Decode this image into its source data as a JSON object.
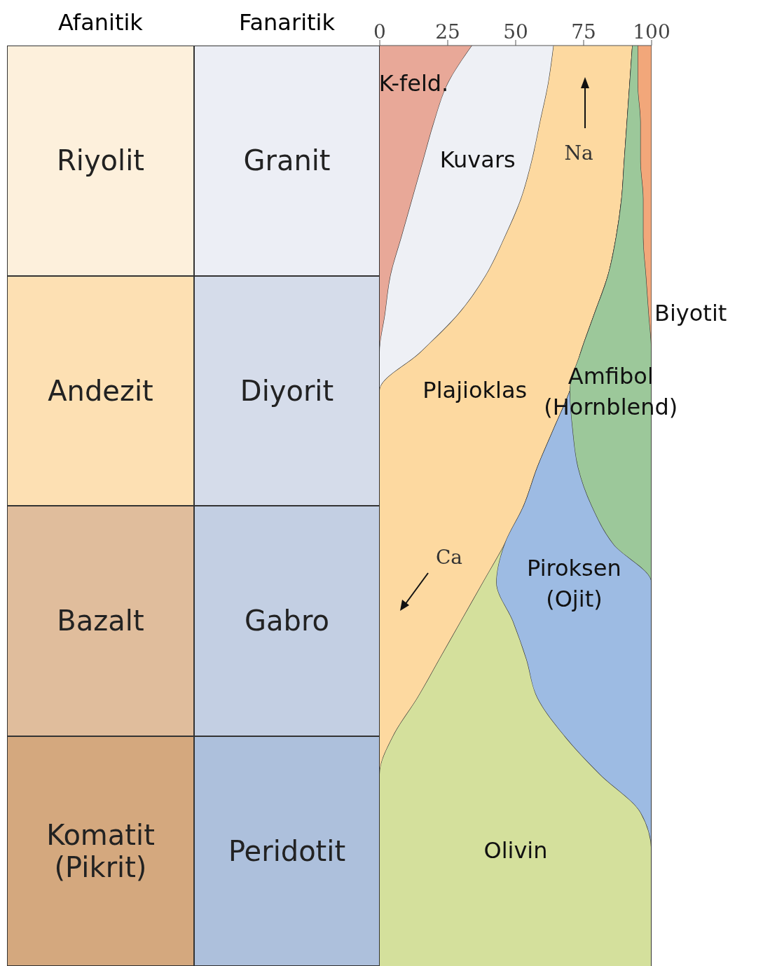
{
  "chart_data": [
    {
      "type": "other",
      "categories": [
        "Afanitik",
        "Fanaritik"
      ],
      "cell_labels": [
        [
          "Riyolit",
          "Granit"
        ],
        [
          "Andezit",
          "Diyorit"
        ],
        [
          "Bazalt",
          "Gabro"
        ],
        [
          "Komatit\n(Pikrit)",
          "Peridotit"
        ]
      ],
      "colors": [
        [
          "#fdf0dc",
          "#eceef5"
        ],
        [
          "#fde0b3",
          "#d5dcea"
        ],
        [
          "#e0bd9c",
          "#c3cfe3"
        ],
        [
          "#d4a87e",
          "#adc0dc"
        ]
      ]
    },
    {
      "type": "area",
      "stacked": true,
      "orientation": "horizontal",
      "xlim": [
        0,
        100
      ],
      "xticks": [
        0,
        25,
        50,
        75,
        100
      ],
      "tick_labels": "x",
      "categories": [
        null,
        null,
        null,
        null,
        null,
        null,
        null,
        null,
        null,
        null,
        null,
        null,
        null,
        null,
        null,
        null,
        null,
        null,
        null,
        null,
        null,
        null,
        null,
        null,
        null
      ],
      "annotations": [
        "Na",
        "Ca"
      ],
      "series": [
        {
          "name": "K-feld.",
          "color": "#e8a898",
          "values": [
            34,
            25,
            20,
            16,
            12,
            8,
            4,
            2,
            0,
            0,
            0,
            0,
            0,
            0,
            0,
            0,
            0,
            0,
            0,
            0,
            0,
            0,
            0,
            0,
            0
          ]
        },
        {
          "name": "Kuvars",
          "color": "#eef0f5",
          "values": [
            30,
            37,
            39,
            40,
            40,
            38,
            35,
            27,
            15,
            0,
            0,
            0,
            0,
            0,
            0,
            0,
            0,
            0,
            0,
            0,
            0,
            0,
            0,
            0,
            0
          ]
        },
        {
          "name": "Plajioklas",
          "color": "#fdd9a0",
          "values": [
            29,
            30,
            32,
            34,
            37,
            41,
            45,
            50,
            59,
            70,
            64,
            58,
            53,
            46,
            38,
            30,
            22,
            14,
            5,
            0,
            0,
            0,
            0,
            0,
            0
          ]
        },
        {
          "name": "Olivin",
          "color": "#d4e09c",
          "values": [
            0,
            0,
            0,
            0,
            0,
            0,
            0,
            0,
            0,
            0,
            0,
            0,
            0,
            0,
            5,
            19,
            32,
            44,
            63,
            81,
            96,
            100,
            100,
            100,
            100
          ]
        },
        {
          "name": "Piroksen\n(Ojit)",
          "color": "#9dbbe3",
          "values": [
            0,
            0,
            0,
            0,
            0,
            0,
            0,
            0,
            0,
            0,
            7,
            15,
            25,
            40,
            57,
            51,
            46,
            42,
            32,
            19,
            4,
            0,
            0,
            0,
            0
          ]
        },
        {
          "name": "Amfibol\n(Hornblend)",
          "color": "#9cc89a",
          "values": [
            2,
            3,
            5,
            6,
            8,
            10,
            14,
            20,
            26,
            30,
            29,
            27,
            22,
            14,
            0,
            0,
            0,
            0,
            0,
            0,
            0,
            0,
            0,
            0,
            0
          ]
        },
        {
          "name": "Biyotit",
          "color": "#f2a77a",
          "values": [
            5,
            5,
            4,
            4,
            3,
            3,
            2,
            1,
            0,
            0,
            0,
            0,
            0,
            0,
            0,
            0,
            0,
            0,
            0,
            0,
            0,
            0,
            0,
            0,
            0
          ]
        }
      ]
    }
  ]
}
